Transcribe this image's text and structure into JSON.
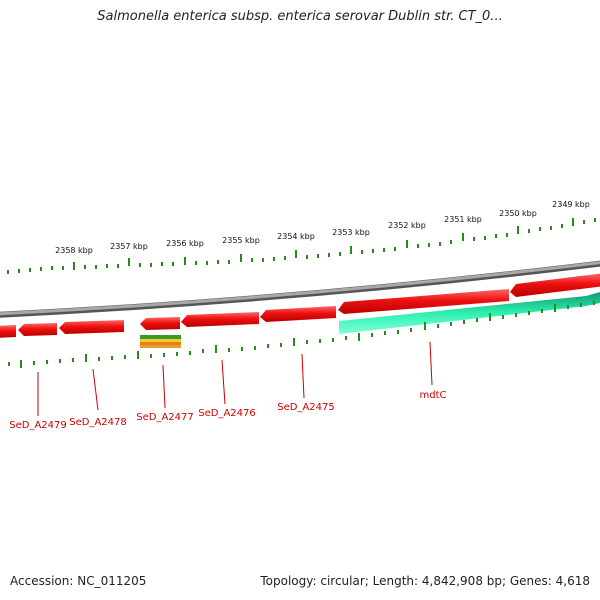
{
  "title": "Salmonella enterica subsp. enterica serovar Dublin str. CT_0...",
  "footer": {
    "accession": "Accession: NC_011205",
    "topology": "Topology: circular; Length: 4,842,908 bp; Genes: 4,618"
  },
  "ruler": {
    "labels": [
      "2358 kbp",
      "2357 kbp",
      "2356 kbp",
      "2355 kbp",
      "2354 kbp",
      "2353 kbp",
      "2352 kbp",
      "2351 kbp",
      "2350 kbp",
      "2349 kbp"
    ]
  },
  "genes": [
    {
      "label": "SeD_A2479"
    },
    {
      "label": "SeD_A2478"
    },
    {
      "label": "SeD_A2477"
    },
    {
      "label": "SeD_A2476"
    },
    {
      "label": "SeD_A2475"
    },
    {
      "label": "mdtC"
    }
  ],
  "colors": {
    "gene_red": "#e8161b",
    "gene_green": "#22e6a4",
    "backbone": "#8a8a8a",
    "tick": "#2b8a1f",
    "label": "#cc0000"
  }
}
